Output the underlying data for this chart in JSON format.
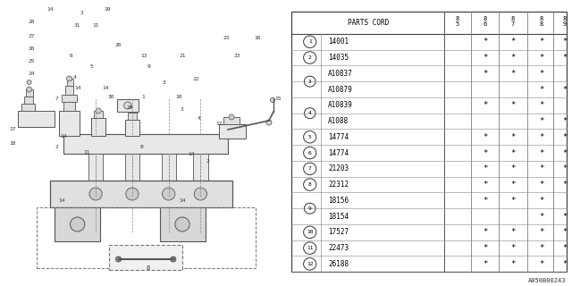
{
  "figure_code": "A050B00243",
  "table": {
    "header_years": [
      "85",
      "86",
      "87",
      "88",
      "89"
    ],
    "rows": [
      {
        "num": "1",
        "part": "14001",
        "cols": [
          false,
          true,
          true,
          true,
          true
        ]
      },
      {
        "num": "2",
        "part": "14035",
        "cols": [
          false,
          true,
          true,
          true,
          true
        ]
      },
      {
        "num": "3",
        "part": "A10837",
        "cols": [
          false,
          true,
          true,
          true,
          false
        ]
      },
      {
        "num": "3",
        "part": "A10879",
        "cols": [
          false,
          false,
          false,
          true,
          true
        ]
      },
      {
        "num": "4",
        "part": "A10839",
        "cols": [
          false,
          true,
          true,
          true,
          false
        ]
      },
      {
        "num": "4",
        "part": "A1088",
        "cols": [
          false,
          false,
          false,
          true,
          true
        ]
      },
      {
        "num": "5",
        "part": "14774",
        "cols": [
          false,
          true,
          true,
          true,
          true
        ]
      },
      {
        "num": "6",
        "part": "14774",
        "cols": [
          false,
          true,
          true,
          true,
          true
        ]
      },
      {
        "num": "7",
        "part": "21203",
        "cols": [
          false,
          true,
          true,
          true,
          true
        ]
      },
      {
        "num": "8",
        "part": "22312",
        "cols": [
          false,
          true,
          true,
          true,
          true
        ]
      },
      {
        "num": "9",
        "part": "18156",
        "cols": [
          false,
          true,
          true,
          true,
          false
        ]
      },
      {
        "num": "9",
        "part": "18154",
        "cols": [
          false,
          false,
          false,
          true,
          true
        ]
      },
      {
        "num": "10",
        "part": "17527",
        "cols": [
          false,
          true,
          true,
          true,
          true
        ]
      },
      {
        "num": "11",
        "part": "22473",
        "cols": [
          false,
          true,
          true,
          true,
          true
        ]
      },
      {
        "num": "12",
        "part": "26188",
        "cols": [
          false,
          true,
          true,
          true,
          true
        ]
      }
    ]
  },
  "bg_color": "#ffffff",
  "line_color": "#000000",
  "gray": "#888888",
  "light_gray": "#bbbbbb"
}
